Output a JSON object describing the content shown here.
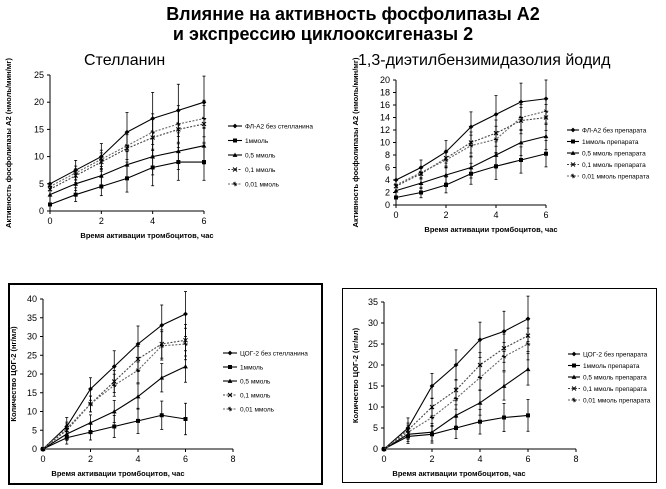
{
  "title_line1": "Влияние на активность фосфолипазы А2",
  "title_line2": "и экспрессию циклооксигеназы 2",
  "subtitle_left": "Стелланин",
  "subtitle_right": "1,3-диэтилбензимидазолия йодид",
  "chart_data": [
    {
      "type": "line",
      "ylabel": "Активность фосфолипазы А2 (нмоль/мин/мг)",
      "xlabel": "Время активации тромбоцитов, час",
      "xlim": [
        0,
        6
      ],
      "ylim": [
        0,
        25
      ],
      "xticks": [
        "0",
        "2",
        "4",
        "6"
      ],
      "yticks": [
        "0",
        "5",
        "10",
        "15",
        "20",
        "25"
      ],
      "x": [
        0,
        1,
        2,
        3,
        4,
        5,
        6
      ],
      "series": [
        {
          "name": "ФЛ-А2 без стелланина",
          "values": [
            5,
            7.5,
            10,
            14.5,
            17,
            18.5,
            20
          ]
        },
        {
          "name": "1ммоль",
          "values": [
            1.2,
            3,
            4.5,
            6,
            8,
            9,
            9
          ]
        },
        {
          "name": "0,5 ммоль",
          "values": [
            3,
            5,
            6.5,
            8.5,
            10,
            11,
            12
          ]
        },
        {
          "name": "0,1 ммоль",
          "values": [
            4,
            6.5,
            9,
            11.5,
            13.5,
            15,
            16
          ]
        },
        {
          "name": "0,01 ммоль",
          "values": [
            4.5,
            7,
            9.5,
            12,
            14.5,
            16,
            17
          ]
        }
      ]
    },
    {
      "type": "line",
      "ylabel": "Активность фосфолипазы А2 (нмоль/мин/мг)",
      "xlabel": "Время активации тромбоцитов, час",
      "xlim": [
        0,
        6
      ],
      "ylim": [
        0,
        20
      ],
      "xticks": [
        "0",
        "2",
        "4",
        "6"
      ],
      "yticks": [
        "0",
        "2",
        "4",
        "6",
        "8",
        "10",
        "12",
        "14",
        "16",
        "18",
        "20"
      ],
      "x": [
        0,
        1,
        2,
        3,
        4,
        5,
        6
      ],
      "series": [
        {
          "name": "ФЛ-А2 без препарата",
          "values": [
            4,
            6,
            8.5,
            12.5,
            14.5,
            16.5,
            17
          ]
        },
        {
          "name": "1ммоль препарата",
          "values": [
            1.2,
            2,
            3.2,
            5,
            6.2,
            7.2,
            8.2
          ]
        },
        {
          "name": "0,5 ммоль препарата",
          "values": [
            2.3,
            3.5,
            4.8,
            6,
            8,
            10,
            11
          ]
        },
        {
          "name": "0,1 ммоль препарата",
          "values": [
            3,
            5,
            7.5,
            10,
            11.5,
            13.5,
            14
          ]
        },
        {
          "name": "0,01 ммоль препарата",
          "values": [
            3.2,
            5.2,
            7.2,
            9.5,
            10.5,
            14,
            15
          ]
        }
      ]
    },
    {
      "type": "line",
      "ylabel": "Количество ЦОГ-2 (нг/мл)",
      "xlabel": "Время активации тромбоцитов, час",
      "xlim": [
        0,
        8
      ],
      "ylim": [
        0,
        40
      ],
      "xticks": [
        "0",
        "2",
        "4",
        "6",
        "8"
      ],
      "yticks": [
        "0",
        "5",
        "10",
        "15",
        "20",
        "25",
        "30",
        "35",
        "40"
      ],
      "x": [
        0,
        1,
        2,
        3,
        4,
        5,
        6
      ],
      "series": [
        {
          "name": "ЦОГ-2 без стелланина",
          "values": [
            0,
            6,
            16,
            22,
            28,
            33,
            36
          ]
        },
        {
          "name": "1ммоль",
          "values": [
            0,
            3,
            4.5,
            6,
            7.5,
            9,
            8
          ]
        },
        {
          "name": "0,5 ммоль",
          "values": [
            0,
            4,
            7,
            10,
            14,
            19,
            22
          ]
        },
        {
          "name": "0,1 ммоль",
          "values": [
            0,
            5,
            12,
            18,
            24,
            28,
            29
          ]
        },
        {
          "name": "0,01 ммоль",
          "values": [
            0,
            5.5,
            12,
            17,
            21,
            27.5,
            28
          ]
        }
      ]
    },
    {
      "type": "line",
      "ylabel": "Количество ЦОГ-2 (нг/мл)",
      "xlabel": "Время активации тромбоцитов, час",
      "xlim": [
        0,
        8
      ],
      "ylim": [
        0,
        35
      ],
      "xticks": [
        "0",
        "2",
        "4",
        "6",
        "8"
      ],
      "yticks": [
        "0",
        "5",
        "10",
        "15",
        "20",
        "25",
        "30",
        "35"
      ],
      "x": [
        0,
        1,
        2,
        3,
        4,
        5,
        6
      ],
      "series": [
        {
          "name": "ЦОГ-2 без препарата",
          "values": [
            0,
            5,
            15,
            20,
            26,
            28,
            31
          ]
        },
        {
          "name": "1ммоль препарата",
          "values": [
            0,
            3,
            3.5,
            5,
            6.5,
            7.5,
            8
          ]
        },
        {
          "name": "0,5 ммоль препарата",
          "values": [
            0,
            3.5,
            4,
            8,
            11,
            15,
            19
          ]
        },
        {
          "name": "0,1 ммоль препарата",
          "values": [
            0,
            4.5,
            10,
            14,
            20,
            24,
            27
          ]
        },
        {
          "name": "0,01 ммоль препарата",
          "values": [
            0,
            4,
            7.5,
            12,
            17,
            22,
            25
          ]
        }
      ]
    }
  ]
}
